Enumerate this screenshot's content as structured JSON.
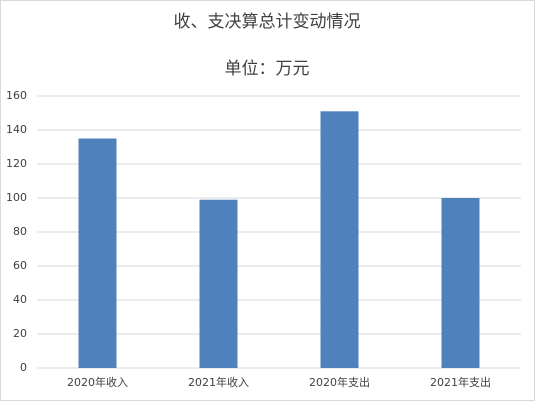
{
  "chart_data": {
    "type": "bar",
    "title": "收、支决算总计变动情况",
    "subtitle": "单位：万元",
    "categories": [
      "2020年收入",
      "2021年收入",
      "2020年支出",
      "2021年支出"
    ],
    "values": [
      135,
      99,
      151,
      100
    ],
    "color": "#4f81bd",
    "ylim": [
      0,
      160
    ],
    "yticks": [
      0,
      20,
      40,
      60,
      80,
      100,
      120,
      140,
      160
    ],
    "grid": true
  }
}
